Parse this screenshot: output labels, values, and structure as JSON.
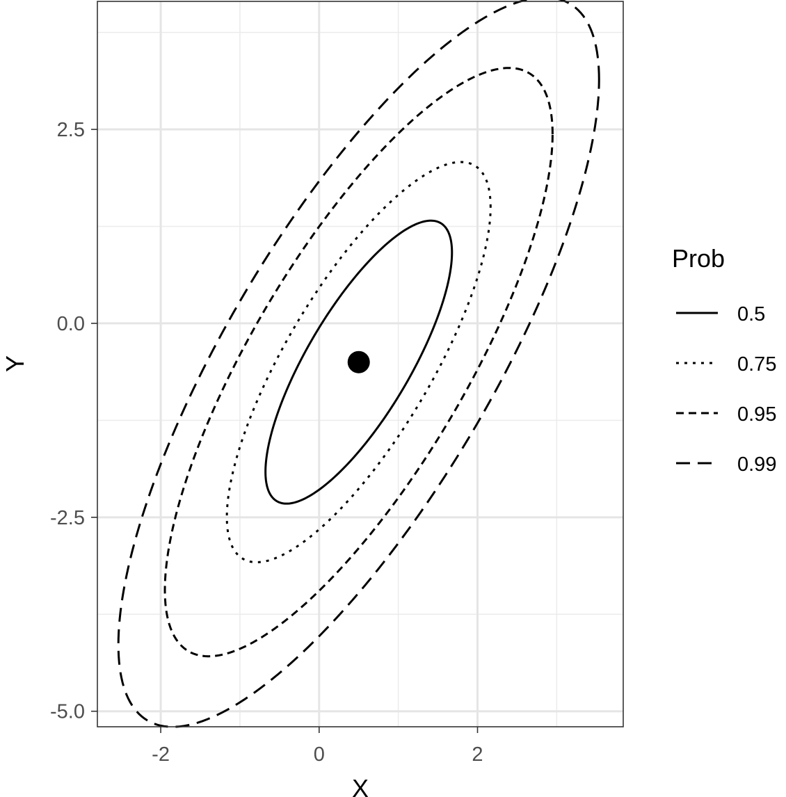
{
  "chart_data": {
    "type": "line",
    "title": "",
    "xlabel": "X",
    "ylabel": "Y",
    "xlim": [
      -2.8,
      3.84
    ],
    "ylim": [
      -5.2,
      4.15
    ],
    "x_ticks": [
      -2,
      0,
      2
    ],
    "x_tick_labels": [
      "-2",
      "0",
      "2"
    ],
    "y_ticks": [
      -5.0,
      -2.5,
      0.0,
      2.5
    ],
    "y_tick_labels": [
      "-5.0",
      "-2.5",
      "0.0",
      "2.5"
    ],
    "x_minor_grid": [
      -1,
      1,
      3
    ],
    "y_minor_grid": [
      -3.75,
      -1.25,
      1.25,
      3.75
    ],
    "grid": true,
    "center_point": {
      "x": 0.5,
      "y": -0.5
    },
    "ellipse_model": {
      "mean": [
        0.5,
        -0.5
      ],
      "covariance": [
        [
          1.0,
          1.2
        ],
        [
          1.2,
          2.4
        ]
      ],
      "chi2_df": 2
    },
    "legend": {
      "title": "Prob",
      "position": "right"
    },
    "series": [
      {
        "name": "0.5",
        "prob": 0.5,
        "linetype": "solid"
      },
      {
        "name": "0.75",
        "prob": 0.75,
        "linetype": "dotted"
      },
      {
        "name": "0.95",
        "prob": 0.95,
        "linetype": "dashed"
      },
      {
        "name": "0.99",
        "prob": 0.99,
        "linetype": "longdash"
      }
    ]
  }
}
